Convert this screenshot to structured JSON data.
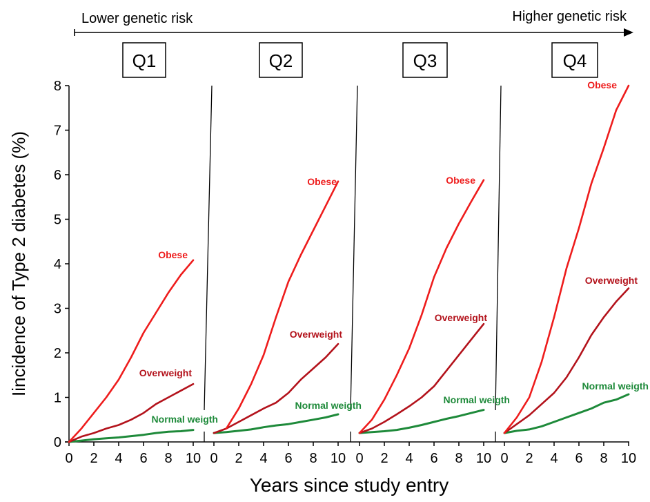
{
  "header": {
    "left_label": "Lower genetic risk",
    "right_label": "Higher genetic risk"
  },
  "colors": {
    "obese": "#ee1c1c",
    "overweight": "#b3121b",
    "normal": "#1e8a3a",
    "axis": "#000000"
  },
  "chart_data": {
    "type": "line",
    "ylabel": "Iincidence of Type 2 diabetes (%)",
    "xlabel": "Years since study entry",
    "ylim": [
      0,
      8
    ],
    "yticks": [
      0,
      1,
      2,
      3,
      4,
      5,
      6,
      7,
      8
    ],
    "xlim": [
      0,
      10
    ],
    "xticks": [
      0,
      2,
      4,
      6,
      8,
      10
    ],
    "grid": false,
    "panels": [
      {
        "name": "Q1",
        "series": [
          {
            "name": "Obese",
            "key": "obese",
            "points": [
              [
                0,
                0
              ],
              [
                1,
                0.3
              ],
              [
                2,
                0.65
              ],
              [
                3,
                1.0
              ],
              [
                4,
                1.4
              ],
              [
                5,
                1.9
              ],
              [
                6,
                2.45
              ],
              [
                7,
                2.9
              ],
              [
                8,
                3.35
              ],
              [
                9,
                3.75
              ],
              [
                10,
                4.08
              ]
            ]
          },
          {
            "name": "Overweight",
            "key": "overweight",
            "points": [
              [
                0,
                0
              ],
              [
                1,
                0.12
              ],
              [
                2,
                0.2
              ],
              [
                3,
                0.3
              ],
              [
                4,
                0.38
              ],
              [
                5,
                0.5
              ],
              [
                6,
                0.65
              ],
              [
                7,
                0.85
              ],
              [
                8,
                1.0
              ],
              [
                9,
                1.15
              ],
              [
                10,
                1.3
              ]
            ]
          },
          {
            "name": "Normal weigth",
            "key": "normal",
            "points": [
              [
                0,
                0
              ],
              [
                1,
                0.03
              ],
              [
                2,
                0.06
              ],
              [
                3,
                0.08
              ],
              [
                4,
                0.1
              ],
              [
                5,
                0.13
              ],
              [
                6,
                0.16
              ],
              [
                7,
                0.2
              ],
              [
                8,
                0.23
              ],
              [
                9,
                0.24
              ],
              [
                10,
                0.27
              ]
            ]
          }
        ]
      },
      {
        "name": "Q2",
        "series": [
          {
            "name": "Obese",
            "key": "obese",
            "points": [
              [
                1,
                0.3
              ],
              [
                2,
                0.75
              ],
              [
                3,
                1.3
              ],
              [
                4,
                1.95
              ],
              [
                5,
                2.8
              ],
              [
                6,
                3.6
              ],
              [
                7,
                4.2
              ],
              [
                8,
                4.75
              ],
              [
                9,
                5.3
              ],
              [
                10,
                5.85
              ]
            ]
          },
          {
            "name": "Overweight",
            "key": "overweight",
            "points": [
              [
                0,
                0.2
              ],
              [
                1,
                0.3
              ],
              [
                2,
                0.45
              ],
              [
                3,
                0.6
              ],
              [
                4,
                0.75
              ],
              [
                5,
                0.88
              ],
              [
                6,
                1.1
              ],
              [
                7,
                1.4
              ],
              [
                8,
                1.65
              ],
              [
                9,
                1.9
              ],
              [
                10,
                2.2
              ]
            ]
          },
          {
            "name": "Normal weigth",
            "key": "normal",
            "points": [
              [
                0,
                0.2
              ],
              [
                1,
                0.22
              ],
              [
                2,
                0.25
              ],
              [
                3,
                0.28
              ],
              [
                4,
                0.33
              ],
              [
                5,
                0.37
              ],
              [
                6,
                0.4
              ],
              [
                7,
                0.45
              ],
              [
                8,
                0.5
              ],
              [
                9,
                0.55
              ],
              [
                10,
                0.62
              ]
            ]
          }
        ]
      },
      {
        "name": "Q3",
        "series": [
          {
            "name": "Obese",
            "key": "obese",
            "points": [
              [
                0,
                0.2
              ],
              [
                1,
                0.5
              ],
              [
                2,
                0.95
              ],
              [
                3,
                1.5
              ],
              [
                4,
                2.1
              ],
              [
                5,
                2.85
              ],
              [
                6,
                3.7
              ],
              [
                7,
                4.35
              ],
              [
                8,
                4.9
              ],
              [
                9,
                5.4
              ],
              [
                10,
                5.88
              ]
            ]
          },
          {
            "name": "Overweight",
            "key": "overweight",
            "points": [
              [
                0,
                0.2
              ],
              [
                1,
                0.3
              ],
              [
                2,
                0.45
              ],
              [
                3,
                0.62
              ],
              [
                4,
                0.8
              ],
              [
                5,
                1.0
              ],
              [
                6,
                1.25
              ],
              [
                7,
                1.6
              ],
              [
                8,
                1.95
              ],
              [
                9,
                2.3
              ],
              [
                10,
                2.65
              ]
            ]
          },
          {
            "name": "Normal weigth",
            "key": "normal",
            "points": [
              [
                0,
                0.2
              ],
              [
                1,
                0.22
              ],
              [
                2,
                0.24
              ],
              [
                3,
                0.27
              ],
              [
                4,
                0.32
              ],
              [
                5,
                0.38
              ],
              [
                6,
                0.45
              ],
              [
                7,
                0.52
              ],
              [
                8,
                0.58
              ],
              [
                9,
                0.65
              ],
              [
                10,
                0.72
              ]
            ]
          }
        ]
      },
      {
        "name": "Q4",
        "series": [
          {
            "name": "Obese",
            "key": "obese",
            "points": [
              [
                0,
                0.2
              ],
              [
                1,
                0.55
              ],
              [
                2,
                1.0
              ],
              [
                3,
                1.8
              ],
              [
                4,
                2.8
              ],
              [
                5,
                3.9
              ],
              [
                6,
                4.8
              ],
              [
                7,
                5.8
              ],
              [
                8,
                6.6
              ],
              [
                9,
                7.45
              ],
              [
                10,
                8.0
              ]
            ]
          },
          {
            "name": "Overweight",
            "key": "overweight",
            "points": [
              [
                0,
                0.2
              ],
              [
                1,
                0.4
              ],
              [
                2,
                0.6
              ],
              [
                3,
                0.85
              ],
              [
                4,
                1.1
              ],
              [
                5,
                1.45
              ],
              [
                6,
                1.9
              ],
              [
                7,
                2.4
              ],
              [
                8,
                2.8
              ],
              [
                9,
                3.15
              ],
              [
                10,
                3.45
              ]
            ]
          },
          {
            "name": "Normal weigth",
            "key": "normal",
            "points": [
              [
                0,
                0.2
              ],
              [
                1,
                0.25
              ],
              [
                2,
                0.28
              ],
              [
                3,
                0.35
              ],
              [
                4,
                0.45
              ],
              [
                5,
                0.55
              ],
              [
                6,
                0.65
              ],
              [
                7,
                0.75
              ],
              [
                8,
                0.88
              ],
              [
                9,
                0.95
              ],
              [
                10,
                1.07
              ]
            ]
          }
        ]
      }
    ]
  }
}
